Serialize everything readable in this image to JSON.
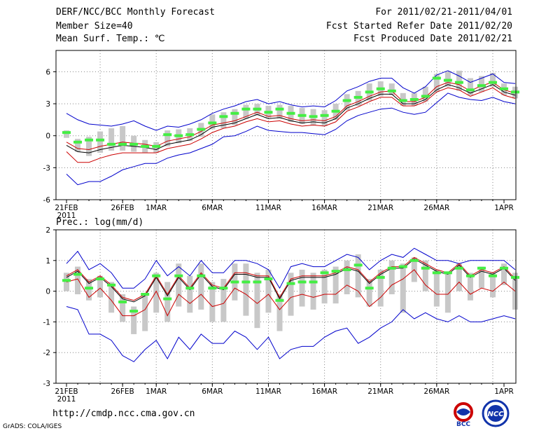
{
  "header": {
    "title": "DERF/NCC/BCC Monthly Forecast",
    "member": "Member Size=40",
    "for_period": "For 2011/02/21-2011/04/01",
    "start": "Fcst Started Refer Date 2011/02/20",
    "produced": "Fcst Produced Date 2011/02/21"
  },
  "footer": {
    "url": "http://cmdp.ncc.cma.gov.cn",
    "grads": "GrADS: COLA/IGES"
  },
  "logos": {
    "bcc": "BCC",
    "ncc": "NCC"
  },
  "colors": {
    "max": "#0000cc",
    "min": "#0000cc",
    "p90": "#cc0000",
    "p10": "#cc0000",
    "mean": "#000000",
    "box": "#c8c8c8",
    "median": "#44ee44"
  },
  "chart_data": [
    {
      "type": "line",
      "title": "Mean Surf. Temp.: ℃",
      "ylim": [
        -6,
        8
      ],
      "yticks": [
        -6,
        -3,
        0,
        3,
        6
      ],
      "xticks": [
        {
          "day": 0,
          "label": "21FEB",
          "sub": "2011"
        },
        {
          "day": 5,
          "label": "26FEB"
        },
        {
          "day": 8,
          "label": "1MAR"
        },
        {
          "day": 13,
          "label": "6MAR"
        },
        {
          "day": 18,
          "label": "11MAR"
        },
        {
          "day": 23,
          "label": "16MAR"
        },
        {
          "day": 28,
          "label": "21MAR"
        },
        {
          "day": 33,
          "label": "26MAR"
        },
        {
          "day": 39,
          "label": "1APR"
        }
      ],
      "series": [
        {
          "name": "max",
          "values": [
            2.1,
            1.5,
            1.1,
            1.0,
            0.9,
            1.1,
            1.4,
            0.9,
            0.5,
            0.9,
            0.8,
            1.1,
            1.5,
            2.1,
            2.5,
            2.8,
            3.2,
            3.4,
            3.0,
            3.2,
            2.9,
            2.7,
            2.8,
            2.7,
            3.3,
            4.2,
            4.6,
            5.1,
            5.4,
            5.4,
            4.5,
            4.0,
            4.6,
            5.7,
            6.1,
            5.6,
            5.0,
            5.4,
            5.8,
            5.0,
            4.9
          ]
        },
        {
          "name": "p90",
          "values": [
            -0.6,
            -1.2,
            -1.3,
            -1.0,
            -0.8,
            -0.6,
            -0.7,
            -0.8,
            -1.0,
            -0.5,
            -0.3,
            -0.1,
            0.4,
            1.0,
            1.2,
            1.4,
            1.8,
            2.2,
            1.8,
            1.9,
            1.6,
            1.4,
            1.5,
            1.4,
            1.8,
            2.8,
            3.2,
            3.7,
            4.1,
            4.2,
            3.2,
            3.2,
            3.6,
            4.6,
            5.0,
            4.8,
            4.2,
            4.7,
            5.0,
            4.3,
            4.0
          ]
        },
        {
          "name": "mean",
          "values": [
            -0.9,
            -1.5,
            -1.6,
            -1.3,
            -1.1,
            -0.9,
            -1.0,
            -1.1,
            -1.3,
            -0.8,
            -0.6,
            -0.4,
            0.1,
            0.8,
            1.0,
            1.2,
            1.6,
            2.0,
            1.6,
            1.7,
            1.4,
            1.2,
            1.3,
            1.2,
            1.6,
            2.6,
            3.0,
            3.5,
            3.9,
            3.9,
            3.0,
            3.0,
            3.4,
            4.3,
            4.8,
            4.5,
            4.0,
            4.4,
            4.8,
            4.1,
            3.8
          ]
        },
        {
          "name": "p10",
          "values": [
            -1.5,
            -2.5,
            -2.5,
            -2.1,
            -1.8,
            -1.6,
            -1.6,
            -1.6,
            -1.6,
            -1.2,
            -1.0,
            -0.8,
            -0.3,
            0.3,
            0.7,
            0.9,
            1.3,
            1.6,
            1.3,
            1.4,
            1.1,
            0.9,
            1.0,
            0.9,
            1.3,
            2.3,
            2.7,
            3.2,
            3.6,
            3.6,
            2.8,
            2.8,
            3.2,
            4.1,
            4.5,
            4.3,
            3.7,
            4.1,
            4.5,
            3.8,
            3.5
          ]
        },
        {
          "name": "min",
          "values": [
            -3.6,
            -4.6,
            -4.3,
            -4.3,
            -3.8,
            -3.2,
            -2.9,
            -2.6,
            -2.6,
            -2.1,
            -1.8,
            -1.6,
            -1.2,
            -0.8,
            -0.1,
            0.0,
            0.4,
            0.9,
            0.5,
            0.4,
            0.3,
            0.3,
            0.2,
            0.1,
            0.6,
            1.4,
            1.9,
            2.2,
            2.5,
            2.6,
            2.2,
            2.0,
            2.2,
            3.1,
            4.0,
            3.6,
            3.4,
            3.3,
            3.6,
            3.2,
            3.0
          ]
        }
      ],
      "boxes": [
        {
          "lo": -0.2,
          "hi": 0.5
        },
        {
          "lo": -1.5,
          "hi": -0.3
        },
        {
          "lo": -1.9,
          "hi": -0.1
        },
        {
          "lo": -1.6,
          "hi": 0.4
        },
        {
          "lo": -1.4,
          "hi": 0.7
        },
        {
          "lo": -1.4,
          "hi": 0.9
        },
        {
          "lo": -1.5,
          "hi": 0.0
        },
        {
          "lo": -1.6,
          "hi": -0.4
        },
        {
          "lo": -1.6,
          "hi": -0.6
        },
        {
          "lo": -1.0,
          "hi": 0.5
        },
        {
          "lo": -0.7,
          "hi": 0.6
        },
        {
          "lo": -0.5,
          "hi": 0.7
        },
        {
          "lo": -0.1,
          "hi": 1.2
        },
        {
          "lo": 0.6,
          "hi": 2.0
        },
        {
          "lo": 0.7,
          "hi": 2.2
        },
        {
          "lo": 1.0,
          "hi": 2.5
        },
        {
          "lo": 1.6,
          "hi": 2.9
        },
        {
          "lo": 1.9,
          "hi": 3.0
        },
        {
          "lo": 1.7,
          "hi": 2.8
        },
        {
          "lo": 1.6,
          "hi": 2.9
        },
        {
          "lo": 1.3,
          "hi": 2.8
        },
        {
          "lo": 1.1,
          "hi": 2.6
        },
        {
          "lo": 1.0,
          "hi": 2.5
        },
        {
          "lo": 0.9,
          "hi": 2.4
        },
        {
          "lo": 1.5,
          "hi": 3.0
        },
        {
          "lo": 2.4,
          "hi": 3.9
        },
        {
          "lo": 2.8,
          "hi": 4.2
        },
        {
          "lo": 3.3,
          "hi": 4.9
        },
        {
          "lo": 3.7,
          "hi": 5.1
        },
        {
          "lo": 3.8,
          "hi": 4.9
        },
        {
          "lo": 2.8,
          "hi": 4.0
        },
        {
          "lo": 2.8,
          "hi": 4.0
        },
        {
          "lo": 3.2,
          "hi": 4.6
        },
        {
          "lo": 4.1,
          "hi": 5.8
        },
        {
          "lo": 4.6,
          "hi": 6.0
        },
        {
          "lo": 4.2,
          "hi": 6.1
        },
        {
          "lo": 3.8,
          "hi": 5.4
        },
        {
          "lo": 4.1,
          "hi": 5.6
        },
        {
          "lo": 4.6,
          "hi": 5.9
        },
        {
          "lo": 3.8,
          "hi": 4.9
        },
        {
          "lo": 3.5,
          "hi": 4.6
        }
      ],
      "medians": [
        0.3,
        -0.6,
        -0.4,
        -0.4,
        -0.8,
        -0.8,
        -0.8,
        -1.0,
        -1.0,
        0.1,
        0.0,
        0.1,
        0.6,
        1.2,
        1.8,
        2.1,
        2.5,
        2.5,
        2.2,
        2.5,
        2.1,
        1.9,
        1.8,
        1.9,
        2.3,
        3.3,
        3.6,
        4.1,
        4.4,
        4.2,
        3.3,
        3.4,
        3.7,
        5.4,
        5.2,
        5.0,
        4.3,
        4.7,
        5.0,
        4.4,
        4.1
      ]
    },
    {
      "type": "line",
      "title": "Prec.: log(mm/d)",
      "ylim": [
        -3,
        2
      ],
      "yticks": [
        -3,
        -2,
        -1,
        0,
        1,
        2
      ],
      "xticks": [
        {
          "day": 0,
          "label": "21FEB",
          "sub": "2011"
        },
        {
          "day": 5,
          "label": "26FEB"
        },
        {
          "day": 8,
          "label": "1MAR"
        },
        {
          "day": 13,
          "label": "6MAR"
        },
        {
          "day": 18,
          "label": "11MAR"
        },
        {
          "day": 23,
          "label": "16MAR"
        },
        {
          "day": 28,
          "label": "21MAR"
        },
        {
          "day": 33,
          "label": "26MAR"
        },
        {
          "day": 39,
          "label": "1APR"
        }
      ],
      "series": [
        {
          "name": "max",
          "values": [
            0.9,
            1.3,
            0.7,
            0.9,
            0.6,
            0.1,
            0.1,
            0.4,
            1.0,
            0.5,
            0.8,
            0.5,
            1.0,
            0.6,
            0.6,
            1.0,
            1.0,
            0.9,
            0.7,
            0.1,
            0.8,
            0.9,
            0.8,
            0.8,
            1.0,
            1.2,
            1.1,
            0.7,
            1.0,
            1.2,
            1.1,
            1.4,
            1.2,
            1.0,
            1.0,
            0.9,
            1.0,
            1.0,
            1.0,
            1.0,
            0.7
          ]
        },
        {
          "name": "p90",
          "values": [
            0.5,
            0.7,
            0.3,
            0.5,
            0.2,
            -0.2,
            -0.3,
            -0.1,
            0.5,
            -0.1,
            0.5,
            0.1,
            0.6,
            0.2,
            0.1,
            0.6,
            0.6,
            0.5,
            0.5,
            -0.2,
            0.4,
            0.5,
            0.5,
            0.5,
            0.6,
            0.8,
            0.7,
            0.3,
            0.6,
            0.8,
            0.8,
            1.1,
            0.9,
            0.7,
            0.6,
            0.9,
            0.5,
            0.7,
            0.6,
            0.8,
            0.4
          ]
        },
        {
          "name": "mean",
          "values": [
            0.45,
            0.65,
            0.25,
            0.45,
            0.15,
            -0.25,
            -0.35,
            -0.15,
            0.45,
            -0.15,
            0.45,
            0.05,
            0.55,
            0.15,
            0.05,
            0.55,
            0.55,
            0.45,
            0.45,
            -0.25,
            0.35,
            0.45,
            0.45,
            0.45,
            0.55,
            0.75,
            0.65,
            0.25,
            0.55,
            0.75,
            0.75,
            1.05,
            0.85,
            0.65,
            0.55,
            0.85,
            0.45,
            0.65,
            0.55,
            0.75,
            0.35
          ]
        },
        {
          "name": "p10",
          "values": [
            0.3,
            0.4,
            -0.2,
            0.1,
            -0.3,
            -0.8,
            -0.8,
            -0.6,
            0.0,
            -0.8,
            -0.1,
            -0.4,
            -0.1,
            -0.5,
            -0.4,
            0.1,
            -0.1,
            -0.4,
            -0.1,
            -0.6,
            -0.2,
            -0.1,
            -0.2,
            -0.1,
            -0.1,
            0.2,
            0.0,
            -0.5,
            -0.2,
            0.2,
            0.4,
            0.7,
            0.2,
            -0.1,
            -0.1,
            0.3,
            -0.1,
            0.1,
            0.0,
            0.3,
            0.0
          ]
        },
        {
          "name": "min",
          "values": [
            -0.5,
            -0.6,
            -1.4,
            -1.4,
            -1.6,
            -2.1,
            -2.3,
            -1.9,
            -1.6,
            -2.2,
            -1.5,
            -1.9,
            -1.4,
            -1.7,
            -1.7,
            -1.3,
            -1.5,
            -1.9,
            -1.5,
            -2.2,
            -1.9,
            -1.8,
            -1.8,
            -1.5,
            -1.3,
            -1.2,
            -1.7,
            -1.5,
            -1.2,
            -1.0,
            -0.6,
            -0.9,
            -0.7,
            -0.9,
            -1.0,
            -0.8,
            -1.0,
            -1.0,
            -0.9,
            -0.8,
            -0.9
          ]
        }
      ],
      "boxes": [
        {
          "lo": 0.0,
          "hi": 0.6
        },
        {
          "lo": -0.1,
          "hi": 0.8
        },
        {
          "lo": -0.3,
          "hi": 0.4
        },
        {
          "lo": -0.2,
          "hi": 0.5
        },
        {
          "lo": -0.7,
          "hi": 0.3
        },
        {
          "lo": -1.0,
          "hi": -0.1
        },
        {
          "lo": -1.4,
          "hi": -0.5
        },
        {
          "lo": -1.3,
          "hi": -0.1
        },
        {
          "lo": -0.7,
          "hi": 0.6
        },
        {
          "lo": -1.0,
          "hi": 0.3
        },
        {
          "lo": -0.5,
          "hi": 0.9
        },
        {
          "lo": -0.7,
          "hi": 0.5
        },
        {
          "lo": -0.6,
          "hi": 0.9
        },
        {
          "lo": -1.0,
          "hi": 0.3
        },
        {
          "lo": -1.0,
          "hi": 0.4
        },
        {
          "lo": -0.3,
          "hi": 0.9
        },
        {
          "lo": -0.8,
          "hi": 0.9
        },
        {
          "lo": -1.2,
          "hi": 0.6
        },
        {
          "lo": -0.7,
          "hi": 0.7
        },
        {
          "lo": -1.3,
          "hi": -0.1
        },
        {
          "lo": -0.8,
          "hi": 0.6
        },
        {
          "lo": -0.5,
          "hi": 0.7
        },
        {
          "lo": -0.6,
          "hi": 0.6
        },
        {
          "lo": -0.4,
          "hi": 0.7
        },
        {
          "lo": -0.4,
          "hi": 0.8
        },
        {
          "lo": -0.1,
          "hi": 1.0
        },
        {
          "lo": -0.2,
          "hi": 1.2
        },
        {
          "lo": -0.5,
          "hi": 0.4
        },
        {
          "lo": -0.5,
          "hi": 0.7
        },
        {
          "lo": -0.1,
          "hi": 1.0
        },
        {
          "lo": -0.7,
          "hi": 0.9
        },
        {
          "lo": 0.3,
          "hi": 1.1
        },
        {
          "lo": 0.0,
          "hi": 1.0
        },
        {
          "lo": -0.5,
          "hi": 0.7
        },
        {
          "lo": -0.7,
          "hi": 0.6
        },
        {
          "lo": 0.0,
          "hi": 0.9
        },
        {
          "lo": -0.3,
          "hi": 0.6
        },
        {
          "lo": 0.1,
          "hi": 0.8
        },
        {
          "lo": -0.2,
          "hi": 0.6
        },
        {
          "lo": 0.2,
          "hi": 0.9
        },
        {
          "lo": -0.6,
          "hi": 0.6
        }
      ],
      "medians": [
        0.35,
        0.55,
        0.1,
        0.4,
        0.2,
        -0.35,
        -0.65,
        -0.1,
        0.5,
        -0.25,
        0.5,
        0.1,
        0.5,
        0.1,
        0.1,
        0.3,
        0.3,
        0.3,
        0.4,
        -0.3,
        0.25,
        0.3,
        0.3,
        0.6,
        0.65,
        0.7,
        0.85,
        0.1,
        0.45,
        0.75,
        0.8,
        1.0,
        0.75,
        0.6,
        0.6,
        0.75,
        0.5,
        0.75,
        0.5,
        0.75,
        0.45
      ]
    }
  ]
}
